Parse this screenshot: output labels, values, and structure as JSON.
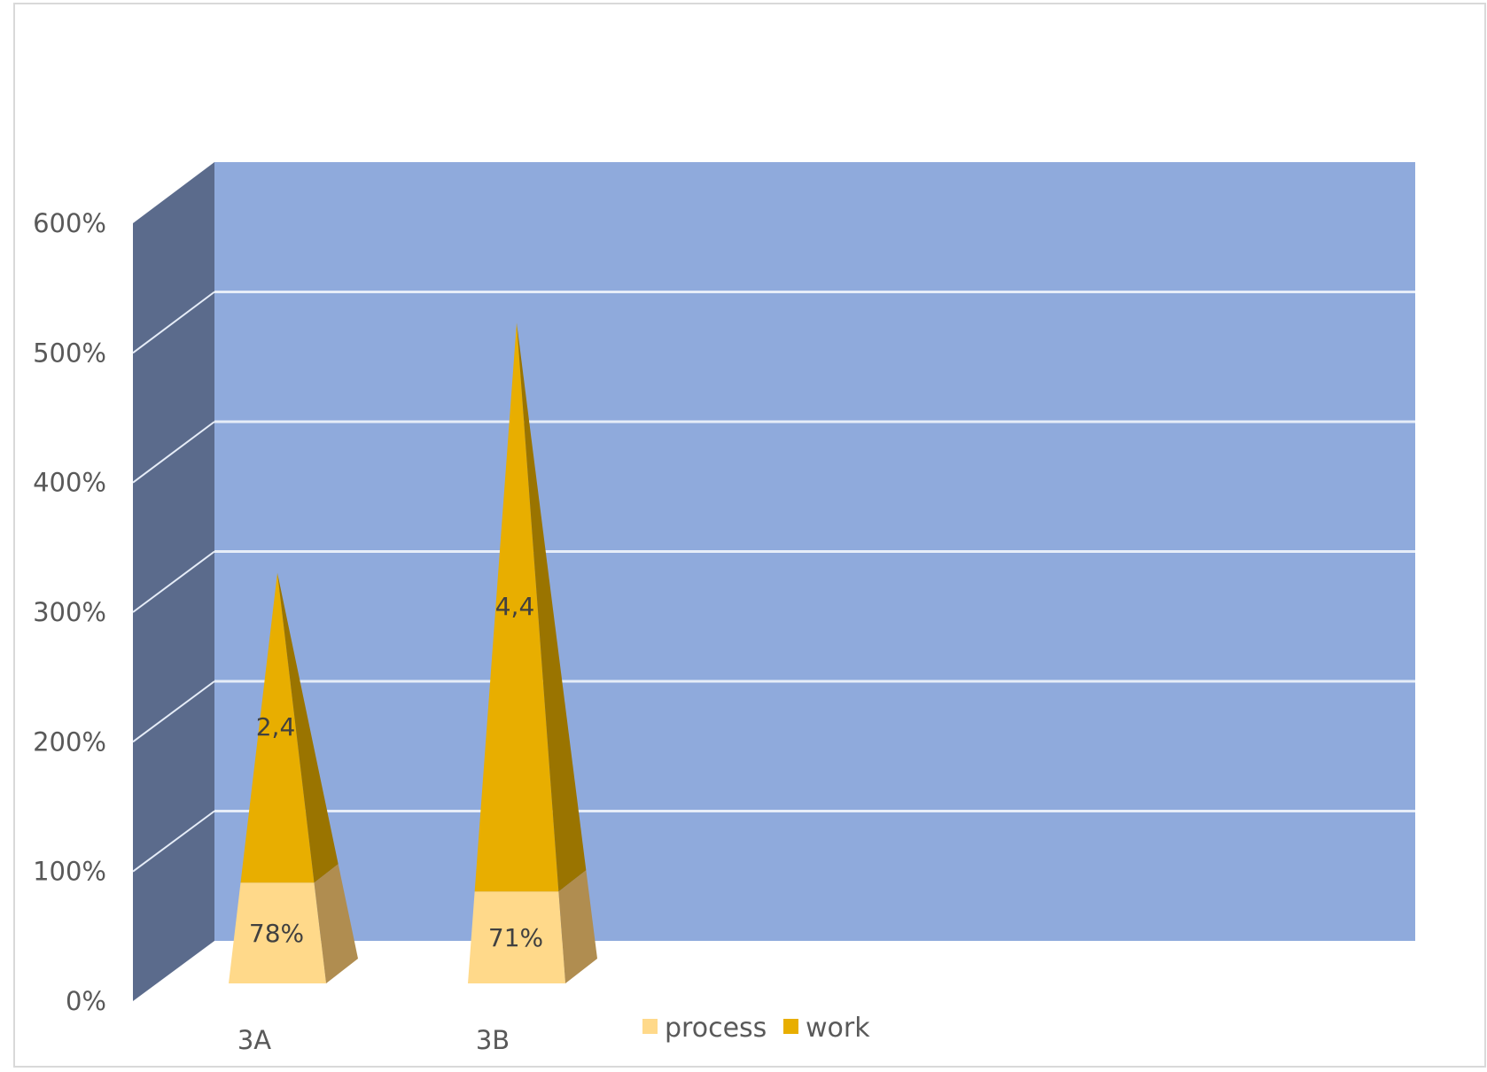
{
  "chart_data": {
    "type": "bar",
    "style": "3d-pyramid-stacked",
    "categories": [
      "3A",
      "3B"
    ],
    "series": [
      {
        "name": "process",
        "values": [
          0.78,
          0.71
        ],
        "labels": [
          "78%",
          "71%"
        ],
        "color": "#FFD98A"
      },
      {
        "name": "work",
        "values": [
          2.4,
          4.4
        ],
        "labels": [
          "2,4",
          "4,4"
        ],
        "color": "#E8AE00"
      }
    ],
    "yticks": [
      "0%",
      "100%",
      "200%",
      "300%",
      "400%",
      "500%",
      "600%"
    ],
    "ylim": [
      0,
      6
    ],
    "grid": true,
    "legend": "bottom",
    "colors": {
      "back_wall": "#8FAADC",
      "side_wall": "#5B6B8C",
      "gridline": "#E6EDF8",
      "process_side": "#B08D50",
      "work_side": "#9A7400"
    }
  }
}
